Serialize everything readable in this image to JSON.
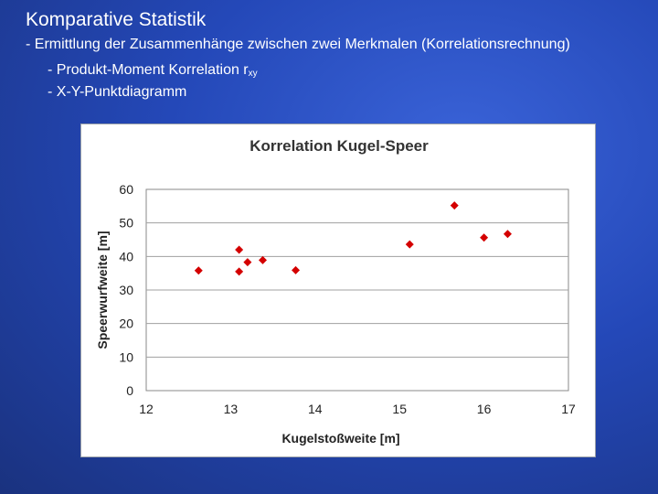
{
  "slide": {
    "title": "Komparative Statistik",
    "bullets": [
      "- Ermittlung der Zusammenhänge zwischen zwei Merkmalen (Korrelationsrechnung)",
      "- Produkt-Moment Korrelation r",
      "- X-Y-Punktdiagramm"
    ],
    "subscript": "xy"
  },
  "chart_data": {
    "type": "scatter",
    "title": "Korrelation Kugel-Speer",
    "xlabel": "Kugelstoßweite [m]",
    "ylabel": "Speerwurfweite [m]",
    "xlim": [
      12,
      17
    ],
    "ylim": [
      0,
      60
    ],
    "xticks": [
      "12",
      "13",
      "14",
      "15",
      "16",
      "17"
    ],
    "yticks": [
      "0",
      "10",
      "20",
      "30",
      "40",
      "50",
      "60"
    ],
    "grid": "horizontal",
    "legend": "none",
    "marker_color": "#d40000",
    "marker": "diamond",
    "points": [
      {
        "x": 12.62,
        "y": 35.8
      },
      {
        "x": 13.1,
        "y": 42.0
      },
      {
        "x": 13.1,
        "y": 35.5
      },
      {
        "x": 13.2,
        "y": 38.3
      },
      {
        "x": 13.38,
        "y": 38.9
      },
      {
        "x": 13.77,
        "y": 35.9
      },
      {
        "x": 15.12,
        "y": 43.6
      },
      {
        "x": 15.65,
        "y": 55.2
      },
      {
        "x": 16.0,
        "y": 45.6
      },
      {
        "x": 16.28,
        "y": 46.7
      }
    ]
  }
}
